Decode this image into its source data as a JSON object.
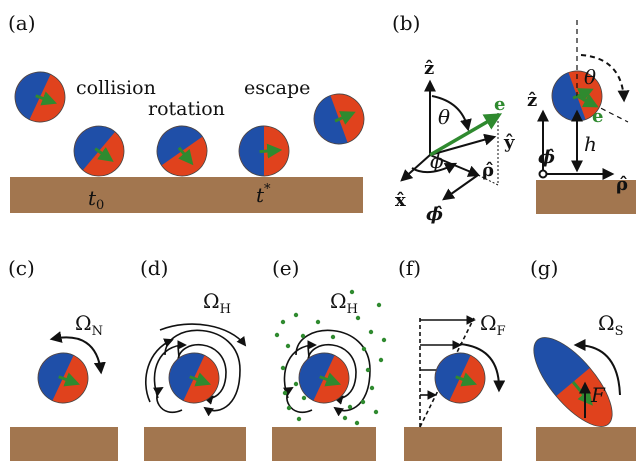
{
  "colors": {
    "ground": "#a2764f",
    "blue": "#1f4fa8",
    "red": "#e0421d",
    "green": "#2f8a2f",
    "ink": "#111111"
  },
  "panels": {
    "a": {
      "label": "(a)",
      "collision": "collision",
      "rotation": "rotation",
      "escape": "escape",
      "t0_base": "t",
      "t0_sub": "0",
      "tstar_base": "t",
      "tstar_sup": "*"
    },
    "b": {
      "label": "(b)",
      "z": "ẑ",
      "y": "ŷ",
      "x": "x̂",
      "rho": "ρ̂",
      "phi_hat": "ϕ̂",
      "e": "e",
      "theta": "θ",
      "phi": "ϕ",
      "h": "h",
      "z2": "ẑ",
      "rho2": "ρ̂",
      "phi_hat2": "ϕ̂",
      "theta2": "θ",
      "e2": "e"
    },
    "c": {
      "label": "(c)",
      "omega_base": "Ω",
      "omega_sub": "N"
    },
    "d": {
      "label": "(d)",
      "omega_base": "Ω",
      "omega_sub": "H"
    },
    "e": {
      "label": "(e)",
      "omega_base": "Ω",
      "omega_sub": "H"
    },
    "f": {
      "label": "(f)",
      "omega_base": "Ω",
      "omega_sub": "F"
    },
    "g": {
      "label": "(g)",
      "omega_base": "Ω",
      "omega_sub": "S",
      "force": "F"
    }
  }
}
